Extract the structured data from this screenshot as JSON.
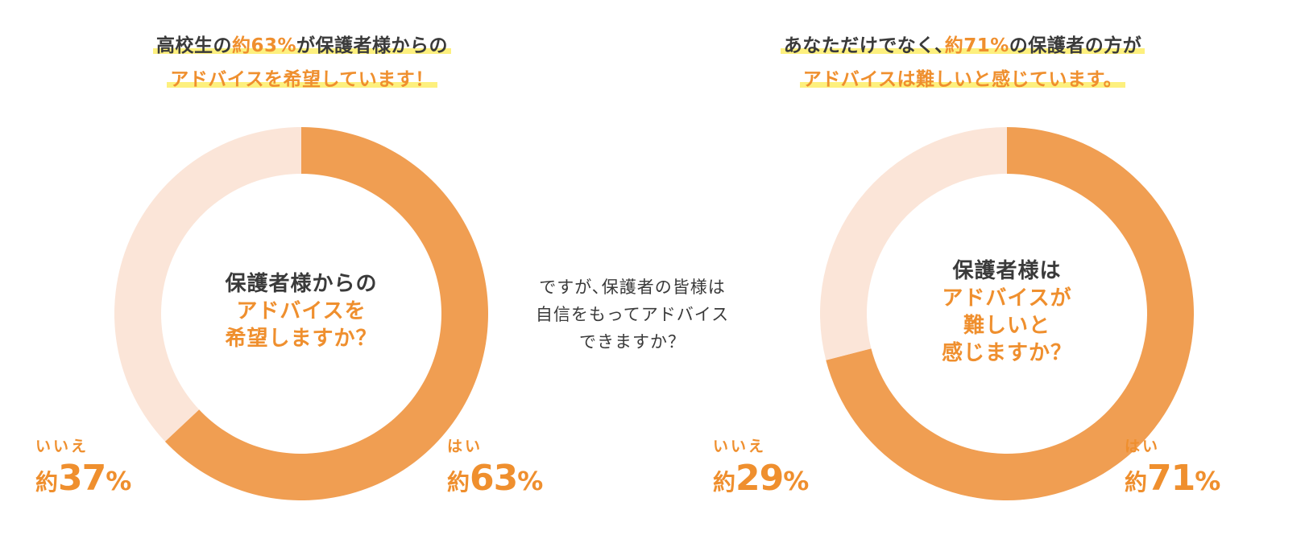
{
  "left": {
    "headline": {
      "line1_pre": "高校生の",
      "line1_accent": "約63%",
      "line1_post": "が保護者様からの",
      "line2": "アドバイスを希望しています！"
    },
    "question": {
      "line1": "保護者様からの",
      "line2": "アドバイスを",
      "line3": "希望しますか？"
    },
    "no": {
      "answer": "いいえ",
      "approx": "約",
      "number": "37",
      "unit": "%"
    },
    "yes": {
      "answer": "はい",
      "approx": "約",
      "number": "63",
      "unit": "%"
    }
  },
  "middle": {
    "line1": "ですが､保護者の皆様は",
    "line2": "自信をもってアドバイス",
    "line3": "できますか？"
  },
  "right": {
    "headline": {
      "line1_pre": "あなただけでなく､",
      "line1_accent": "約71%",
      "line1_post": "の保護者の方が",
      "line2": "アドバイスは難しいと感じています。"
    },
    "question": {
      "line1": "保護者様は",
      "line2": "アドバイスが",
      "line3": "難しいと",
      "line4": "感じますか？"
    },
    "no": {
      "answer": "いいえ",
      "approx": "約",
      "number": "29",
      "unit": "%"
    },
    "yes": {
      "answer": "はい",
      "approx": "約",
      "number": "71",
      "unit": "%"
    }
  },
  "colors": {
    "yes_slice": "#f09e52",
    "no_slice": "#fbe5d8",
    "accent_text": "#ef8f2e",
    "highlight": "#fdf07e",
    "text": "#3a3a3a"
  },
  "chart_data": [
    {
      "type": "pie",
      "categories": [
        "はい",
        "いいえ"
      ],
      "values": [
        63,
        37
      ],
      "unit": "%"
    },
    {
      "type": "pie",
      "categories": [
        "はい",
        "いいえ"
      ],
      "values": [
        71,
        29
      ],
      "unit": "%"
    }
  ]
}
